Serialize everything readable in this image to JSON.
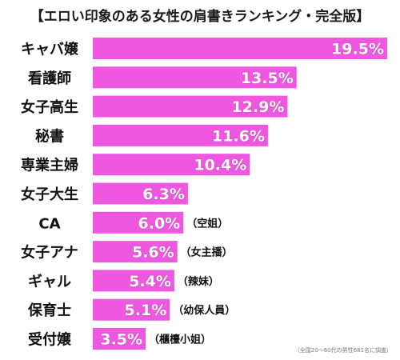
{
  "chart_data": {
    "type": "bar",
    "orientation": "horizontal",
    "title": "【エロい印象のある女性の肩書きランキング・完全版】",
    "categories": [
      "キャバ嬢",
      "看護師",
      "女子高生",
      "秘書",
      "専業主婦",
      "女子大生",
      "CA",
      "女子アナ",
      "ギャル",
      "保育士",
      "受付嬢"
    ],
    "values": [
      19.5,
      13.5,
      12.9,
      11.6,
      10.4,
      6.3,
      6.0,
      5.6,
      5.4,
      5.1,
      3.5
    ],
    "value_labels": [
      "19.5%",
      "13.5%",
      "12.9%",
      "11.6%",
      "10.4%",
      "6.3%",
      "6.0%",
      "5.6%",
      "5.4%",
      "5.1%",
      "3.5%"
    ],
    "notes": [
      "",
      "",
      "",
      "",
      "",
      "",
      "（空姐）",
      "（女主播）",
      "（辣妹）",
      "（幼保人員）",
      "（櫃檯小姐）"
    ],
    "xlim": [
      0,
      19.5
    ],
    "ylabel": "",
    "xlabel": "",
    "grid": false,
    "legend": "none",
    "footnote": "（全国20〜60代の男性681名に調査）",
    "colors": {
      "bar": "#ee58e0",
      "bar_label": "#ffffff",
      "bar_label_stroke": "#b03aa4",
      "category": "#111111",
      "note": "#111111"
    }
  }
}
